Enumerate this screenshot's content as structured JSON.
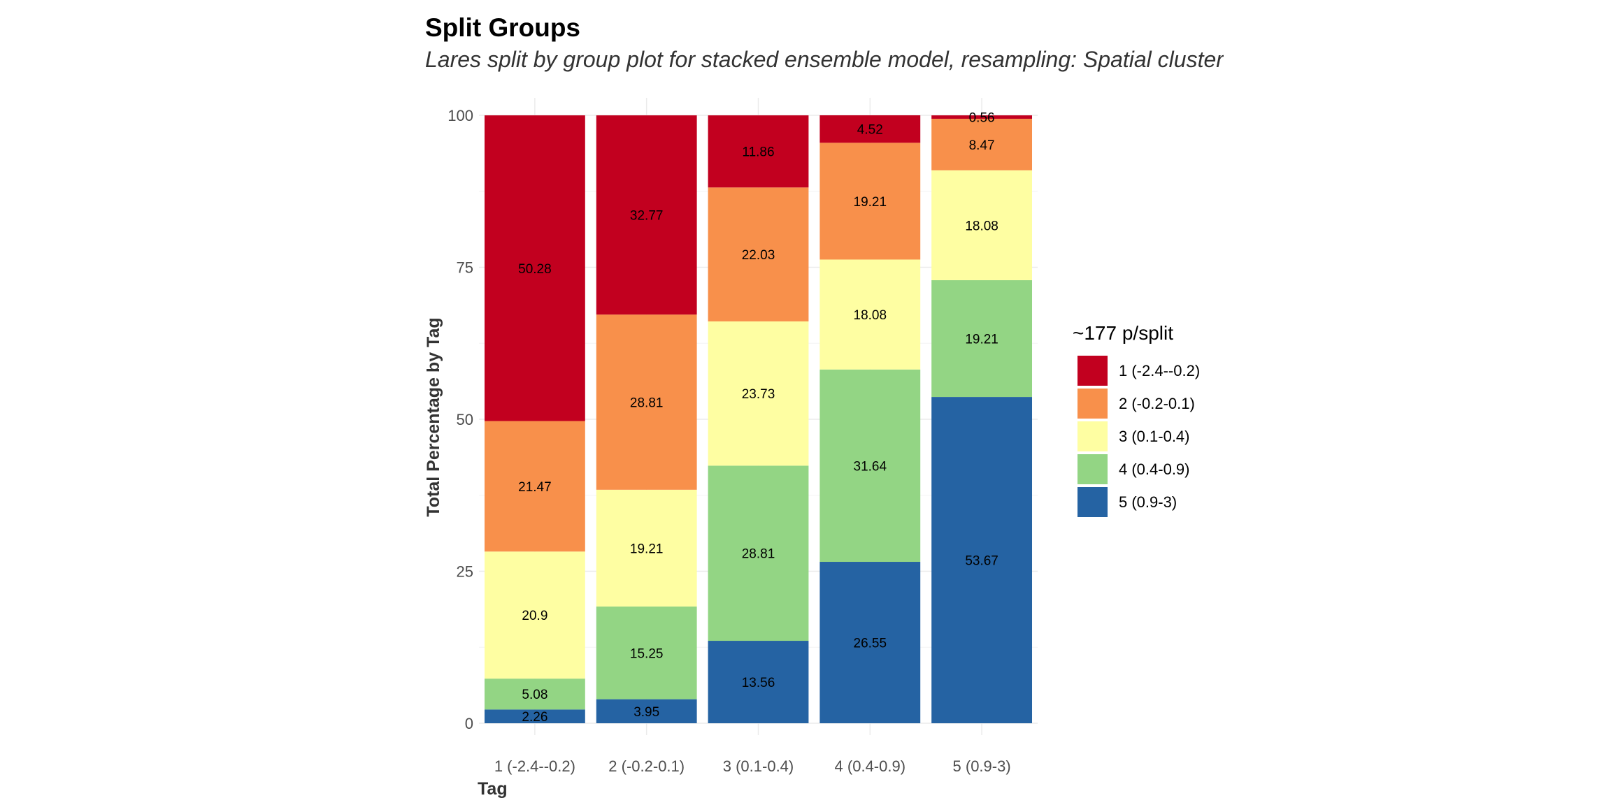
{
  "chart_data": {
    "type": "bar",
    "stacked": true,
    "title": "Split Groups",
    "subtitle": "Lares split by group plot for stacked ensemble model, resampling: Spatial clustering cv-fo",
    "xlabel": "Tag",
    "ylabel": "Total Percentage by Tag",
    "ylim": [
      0,
      100
    ],
    "yticks": [
      0,
      25,
      50,
      75,
      100
    ],
    "grid": true,
    "legend_title": "~177 p/split",
    "legend_position": "right",
    "categories": [
      "1 (-2.4--0.2)",
      "2 (-0.2-0.1)",
      "3 (0.1-0.4)",
      "4 (0.4-0.9)",
      "5 (0.9-3)"
    ],
    "series": [
      {
        "name": "1 (-2.4--0.2)",
        "color": "#C2001F",
        "values": [
          50.28,
          32.77,
          11.86,
          4.52,
          0.56
        ]
      },
      {
        "name": "2 (-0.2-0.1)",
        "color": "#F8904B",
        "values": [
          21.47,
          28.81,
          22.03,
          19.21,
          8.47
        ]
      },
      {
        "name": "3 (0.1-0.4)",
        "color": "#FEFEA2",
        "values": [
          20.9,
          19.21,
          23.73,
          18.08,
          18.08
        ]
      },
      {
        "name": "4 (0.4-0.9)",
        "color": "#93D584",
        "values": [
          5.08,
          15.25,
          28.81,
          31.64,
          19.21
        ]
      },
      {
        "name": "5 (0.9-3)",
        "color": "#2563A3",
        "values": [
          2.26,
          3.95,
          13.56,
          26.55,
          53.67
        ]
      }
    ]
  }
}
